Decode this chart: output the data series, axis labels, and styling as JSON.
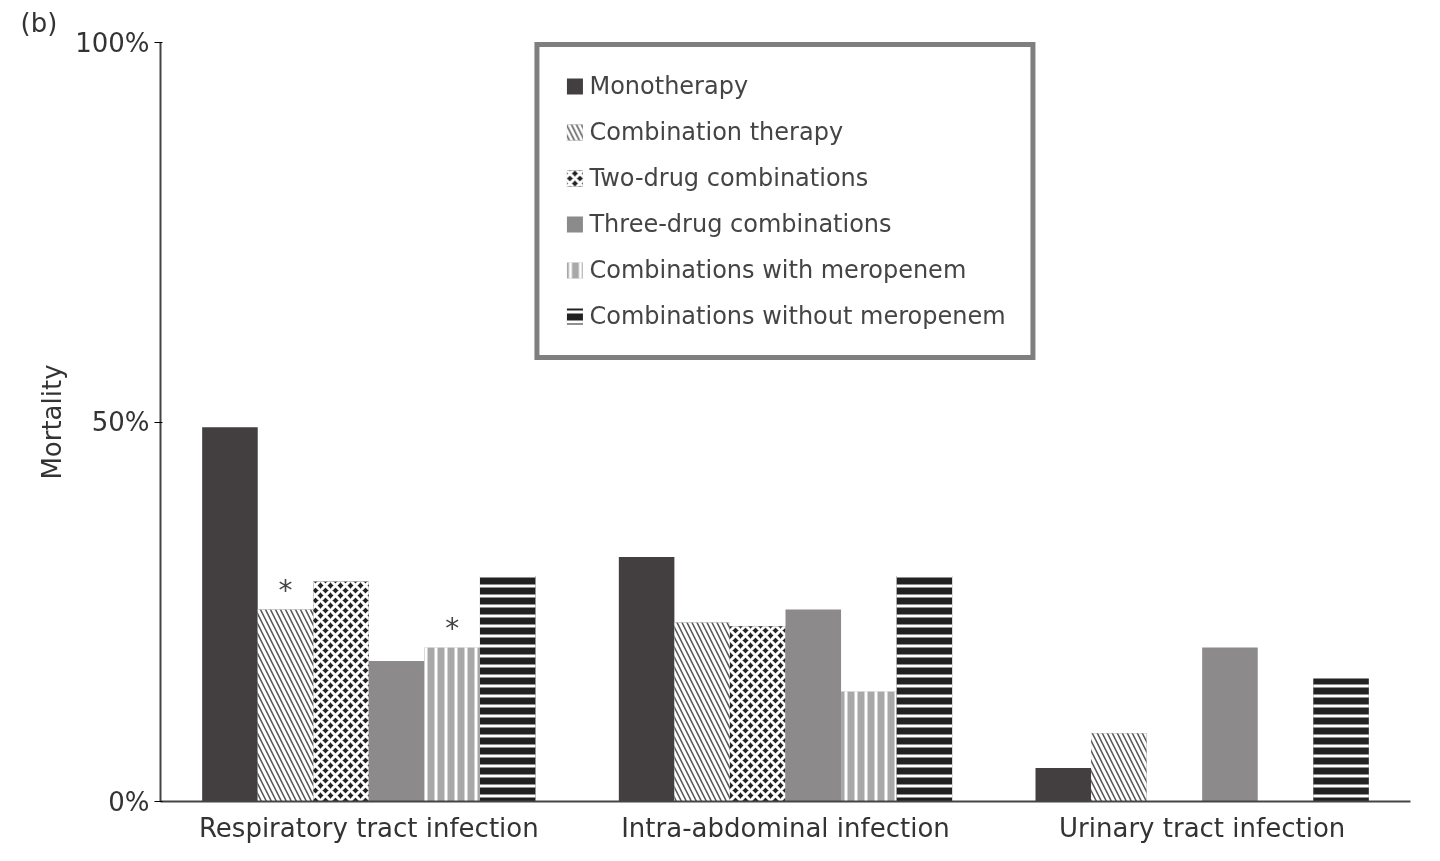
{
  "chart_data": {
    "type": "bar",
    "title": "(b)",
    "ylabel": "Mortality",
    "categories": [
      "Respiratory tract infection",
      "Intra-abdominal infection",
      "Urinary tract infection"
    ],
    "series": [
      {
        "name": "Monotherapy",
        "color": "#433e3f",
        "values": [
          49.3,
          32.2,
          4.4
        ]
      },
      {
        "name": "Combination therapy",
        "color": "#555555",
        "values": [
          25.3,
          23.6,
          9.0
        ]
      },
      {
        "name": "Two-drug combinations",
        "color": "#222222",
        "values": [
          29.0,
          23.1,
          null
        ]
      },
      {
        "name": "Three-drug combinations",
        "color": "#8c8a8b",
        "values": [
          18.5,
          25.3,
          20.3
        ]
      },
      {
        "name": "Combinations with meropenem",
        "color": "#a8a8a8",
        "values": [
          20.3,
          14.5,
          null
        ]
      },
      {
        "name": "Combinations without meropenem",
        "color": "#222222",
        "values": [
          29.7,
          29.7,
          16.2
        ]
      }
    ],
    "ylim": [
      0,
      100
    ],
    "yticks": [
      {
        "value": 0,
        "label": "0%"
      },
      {
        "value": 50,
        "label": "50%"
      },
      {
        "value": 100,
        "label": "100%"
      }
    ],
    "annotations": [
      {
        "text": "*",
        "x": "Respiratory tract infection",
        "y": 25.3
      },
      {
        "text": "*",
        "x": "Respiratory tract infection",
        "y": 20.3
      }
    ],
    "legend": "top",
    "grid": false
  }
}
